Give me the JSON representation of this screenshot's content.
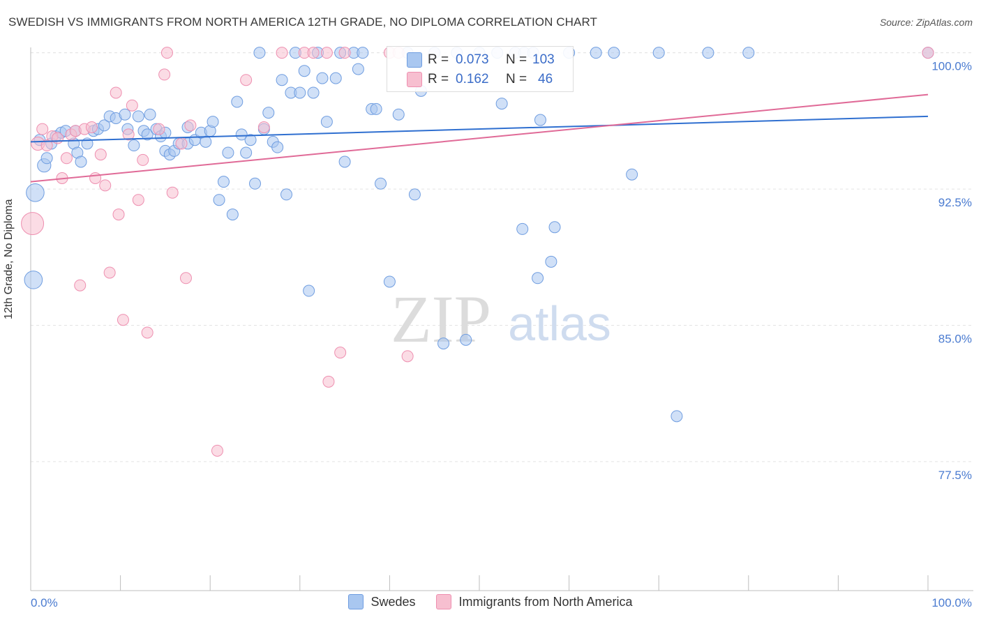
{
  "title": "SWEDISH VS IMMIGRANTS FROM NORTH AMERICA 12TH GRADE, NO DIPLOMA CORRELATION CHART",
  "source": "Source: ZipAtlas.com",
  "watermark": {
    "zip": "ZIP",
    "atlas": "atlas"
  },
  "stats": {
    "r_label": "R =",
    "n_label": "N =",
    "swedes": {
      "r": "0.073",
      "n": "103"
    },
    "immigrants": {
      "r": "0.162",
      "n": "46"
    }
  },
  "legend": {
    "swedes": "Swedes",
    "immigrants": "Immigrants from North America"
  },
  "colors": {
    "blue_fill": "#a9c7f0",
    "blue_stroke": "#6f9de0",
    "blue_line": "#2f6fd0",
    "pink_fill": "#f7bfd0",
    "pink_stroke": "#ee8fb0",
    "pink_line": "#e06a97",
    "axis_text": "#4a7bd0",
    "grid": "#e3e3e3"
  },
  "chart_data": {
    "type": "scatter",
    "title": "SWEDISH VS IMMIGRANTS FROM NORTH AMERICA 12TH GRADE, NO DIPLOMA CORRELATION CHART",
    "xlabel": "",
    "ylabel": "12th Grade, No Diploma",
    "xlim": [
      0,
      100
    ],
    "ylim": [
      70.4,
      100.6
    ],
    "x_tick_labels": [
      "0.0%",
      "100.0%"
    ],
    "y_ticks": [
      77.5,
      85.0,
      92.5,
      100.0
    ],
    "y_tick_labels": [
      "77.5%",
      "85.0%",
      "92.5%",
      "100.0%"
    ],
    "grid": true,
    "legend_position": "bottom",
    "series": [
      {
        "name": "Swedes",
        "r": 0.073,
        "n": 103,
        "trend": {
          "x0": 0,
          "y0": 95.1,
          "x1": 100,
          "y1": 96.5
        },
        "points": [
          [
            0.5,
            92.3,
            1.6
          ],
          [
            0.3,
            87.5,
            1.6
          ],
          [
            1.5,
            93.8,
            1.2
          ],
          [
            1.8,
            94.2,
            1.0
          ],
          [
            2.3,
            95.0,
            1.0
          ],
          [
            2.8,
            95.4,
            1.0
          ],
          [
            3.4,
            95.6,
            1.0
          ],
          [
            3.9,
            95.7,
            1.0
          ],
          [
            4.8,
            95.0,
            1.0
          ],
          [
            5.2,
            94.5,
            1.0
          ],
          [
            5.6,
            94.0,
            1.0
          ],
          [
            6.3,
            95.0,
            1.0
          ],
          [
            7.0,
            95.7,
            1.0
          ],
          [
            7.5,
            95.8,
            1.0
          ],
          [
            8.2,
            96.0,
            1.0
          ],
          [
            8.8,
            96.5,
            1.0
          ],
          [
            9.5,
            96.4,
            1.0
          ],
          [
            10.5,
            96.6,
            1.0
          ],
          [
            10.8,
            95.8,
            1.0
          ],
          [
            11.5,
            94.9,
            1.0
          ],
          [
            12.0,
            96.5,
            1.0
          ],
          [
            12.6,
            95.7,
            1.0
          ],
          [
            13.0,
            95.5,
            1.0
          ],
          [
            13.3,
            96.6,
            1.0
          ],
          [
            14.0,
            95.8,
            1.0
          ],
          [
            14.5,
            95.4,
            1.0
          ],
          [
            15.0,
            94.6,
            1.0
          ],
          [
            15.5,
            94.4,
            1.0
          ],
          [
            16.0,
            94.6,
            1.0
          ],
          [
            16.5,
            95.0,
            1.0
          ],
          [
            17.5,
            95.0,
            1.0
          ],
          [
            17.5,
            95.9,
            1.0
          ],
          [
            18.3,
            95.2,
            1.0
          ],
          [
            19.0,
            95.6,
            1.0
          ],
          [
            19.5,
            95.1,
            1.0
          ],
          [
            20.0,
            95.7,
            1.0
          ],
          [
            20.3,
            96.2,
            1.0
          ],
          [
            21.0,
            91.9,
            1.0
          ],
          [
            21.5,
            92.9,
            1.0
          ],
          [
            22.0,
            94.5,
            1.0
          ],
          [
            22.5,
            91.1,
            1.0
          ],
          [
            23.0,
            97.3,
            1.0
          ],
          [
            23.5,
            95.5,
            1.0
          ],
          [
            24.0,
            94.5,
            1.0
          ],
          [
            24.5,
            95.2,
            1.0
          ],
          [
            25.0,
            92.8,
            1.0
          ],
          [
            25.5,
            100.0,
            1.0
          ],
          [
            26.0,
            95.8,
            1.0
          ],
          [
            26.5,
            96.7,
            1.0
          ],
          [
            27.0,
            95.1,
            1.0
          ],
          [
            27.5,
            94.8,
            1.0
          ],
          [
            28.0,
            98.5,
            1.0
          ],
          [
            28.5,
            92.2,
            1.0
          ],
          [
            29.0,
            97.8,
            1.0
          ],
          [
            29.5,
            100.0,
            1.0
          ],
          [
            30.0,
            97.8,
            1.0
          ],
          [
            30.5,
            99.0,
            1.0
          ],
          [
            31.0,
            86.9,
            1.0
          ],
          [
            31.5,
            97.8,
            1.0
          ],
          [
            32.0,
            100.0,
            1.0
          ],
          [
            32.5,
            98.6,
            1.0
          ],
          [
            33.0,
            96.2,
            1.0
          ],
          [
            34.0,
            98.6,
            1.0
          ],
          [
            34.5,
            100.0,
            1.0
          ],
          [
            35.0,
            94.0,
            1.0
          ],
          [
            36.0,
            100.0,
            1.0
          ],
          [
            36.5,
            99.1,
            1.0
          ],
          [
            37.0,
            100.0,
            1.0
          ],
          [
            38.0,
            96.9,
            1.0
          ],
          [
            38.5,
            96.9,
            1.0
          ],
          [
            39.0,
            92.8,
            1.0
          ],
          [
            40.0,
            87.4,
            1.0
          ],
          [
            41.0,
            96.6,
            1.0
          ],
          [
            42.0,
            100.0,
            1.0
          ],
          [
            42.8,
            92.2,
            1.0
          ],
          [
            43.5,
            97.9,
            1.0
          ],
          [
            45.0,
            100.0,
            1.0
          ],
          [
            46.0,
            84.0,
            1.0
          ],
          [
            47.5,
            100.0,
            1.0
          ],
          [
            48.5,
            84.2,
            1.0
          ],
          [
            50.0,
            100.0,
            1.0
          ],
          [
            52.0,
            100.0,
            1.0
          ],
          [
            52.5,
            97.2,
            1.0
          ],
          [
            54.0,
            100.0,
            1.0
          ],
          [
            55.0,
            100.0,
            1.0
          ],
          [
            54.8,
            90.3,
            1.0
          ],
          [
            56.0,
            100.0,
            1.0
          ],
          [
            56.5,
            87.6,
            1.0
          ],
          [
            56.8,
            96.3,
            1.0
          ],
          [
            58.0,
            88.5,
            1.0
          ],
          [
            58.4,
            90.4,
            1.0
          ],
          [
            60.0,
            100.0,
            1.0
          ],
          [
            63.0,
            100.0,
            1.0
          ],
          [
            65.0,
            100.0,
            1.0
          ],
          [
            67.0,
            93.3,
            1.0
          ],
          [
            70.0,
            100.0,
            1.0
          ],
          [
            72.0,
            80.0,
            1.0
          ],
          [
            75.5,
            100.0,
            1.0
          ],
          [
            80.0,
            100.0,
            1.0
          ],
          [
            100.0,
            100.0,
            1.0
          ],
          [
            1.0,
            95.2,
            1.0
          ],
          [
            5.0,
            95.7,
            1.0
          ],
          [
            15.0,
            95.6,
            1.0
          ]
        ]
      },
      {
        "name": "Immigrants from North America",
        "r": 0.162,
        "n": 46,
        "trend": {
          "x0": 0,
          "y0": 92.9,
          "x1": 100,
          "y1": 97.7
        },
        "points": [
          [
            0.2,
            90.6,
            2.0
          ],
          [
            0.8,
            95.0,
            1.2
          ],
          [
            1.3,
            95.8,
            1.0
          ],
          [
            1.8,
            94.9,
            1.0
          ],
          [
            2.4,
            95.4,
            1.0
          ],
          [
            3.0,
            95.3,
            1.0
          ],
          [
            3.5,
            93.1,
            1.0
          ],
          [
            4.0,
            94.2,
            1.0
          ],
          [
            4.5,
            95.5,
            1.0
          ],
          [
            5.0,
            95.7,
            1.0
          ],
          [
            5.5,
            87.2,
            1.0
          ],
          [
            6.0,
            95.8,
            1.0
          ],
          [
            6.8,
            95.9,
            1.0
          ],
          [
            7.2,
            93.1,
            1.0
          ],
          [
            7.8,
            94.4,
            1.0
          ],
          [
            8.3,
            92.7,
            1.0
          ],
          [
            8.8,
            87.9,
            1.0
          ],
          [
            9.5,
            97.8,
            1.0
          ],
          [
            9.8,
            91.1,
            1.0
          ],
          [
            10.3,
            85.3,
            1.0
          ],
          [
            10.9,
            95.5,
            1.0
          ],
          [
            11.3,
            97.1,
            1.0
          ],
          [
            12.0,
            91.9,
            1.0
          ],
          [
            12.5,
            94.1,
            1.0
          ],
          [
            13.0,
            84.6,
            1.0
          ],
          [
            14.3,
            95.8,
            1.0
          ],
          [
            14.9,
            98.8,
            1.0
          ],
          [
            15.2,
            100.0,
            1.0
          ],
          [
            15.8,
            92.3,
            1.0
          ],
          [
            16.8,
            95.0,
            1.0
          ],
          [
            17.3,
            87.6,
            1.0
          ],
          [
            17.8,
            96.0,
            1.0
          ],
          [
            20.8,
            78.1,
            1.0
          ],
          [
            24.0,
            98.5,
            1.0
          ],
          [
            26.0,
            95.9,
            1.0
          ],
          [
            28.0,
            100.0,
            1.0
          ],
          [
            30.5,
            100.0,
            1.0
          ],
          [
            31.5,
            100.0,
            1.0
          ],
          [
            33.0,
            100.0,
            1.0
          ],
          [
            35.0,
            100.0,
            1.0
          ],
          [
            33.2,
            81.9,
            1.0
          ],
          [
            34.5,
            83.5,
            1.0
          ],
          [
            40.0,
            100.0,
            1.0
          ],
          [
            41.0,
            100.0,
            1.0
          ],
          [
            42.0,
            83.3,
            1.0
          ],
          [
            100.0,
            100.0,
            1.0
          ]
        ]
      }
    ]
  }
}
